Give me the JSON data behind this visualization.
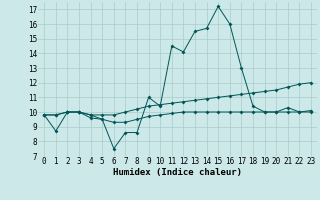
{
  "xlabel": "Humidex (Indice chaleur)",
  "background_color": "#cce8e8",
  "grid_color": "#aacccc",
  "line_color": "#005555",
  "x_values": [
    0,
    1,
    2,
    3,
    4,
    5,
    6,
    7,
    8,
    9,
    10,
    11,
    12,
    13,
    14,
    15,
    16,
    17,
    18,
    19,
    20,
    21,
    22,
    23
  ],
  "series1": [
    9.8,
    8.7,
    10.0,
    10.0,
    9.6,
    9.5,
    7.5,
    8.6,
    8.6,
    11.0,
    10.4,
    14.5,
    14.1,
    15.5,
    15.7,
    17.2,
    16.0,
    13.0,
    10.4,
    10.0,
    10.0,
    10.3,
    10.0,
    10.1
  ],
  "series2": [
    9.8,
    9.8,
    10.0,
    10.0,
    9.8,
    9.8,
    9.8,
    10.0,
    10.2,
    10.4,
    10.5,
    10.6,
    10.7,
    10.8,
    10.9,
    11.0,
    11.1,
    11.2,
    11.3,
    11.4,
    11.5,
    11.7,
    11.9,
    12.0
  ],
  "series3": [
    9.8,
    9.8,
    10.0,
    10.0,
    9.8,
    9.5,
    9.3,
    9.3,
    9.5,
    9.7,
    9.8,
    9.9,
    10.0,
    10.0,
    10.0,
    10.0,
    10.0,
    10.0,
    10.0,
    10.0,
    10.0,
    10.0,
    10.0,
    10.0
  ],
  "ylim": [
    7,
    17.5
  ],
  "xlim": [
    -0.5,
    23.5
  ],
  "yticks": [
    7,
    8,
    9,
    10,
    11,
    12,
    13,
    14,
    15,
    16,
    17
  ],
  "xticks": [
    0,
    1,
    2,
    3,
    4,
    5,
    6,
    7,
    8,
    9,
    10,
    11,
    12,
    13,
    14,
    15,
    16,
    17,
    18,
    19,
    20,
    21,
    22,
    23
  ],
  "tick_fontsize": 5.5,
  "label_fontsize": 6.5
}
